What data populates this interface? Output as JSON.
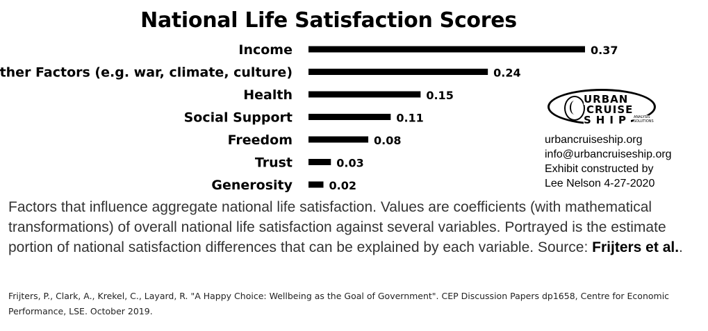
{
  "chart_data": {
    "type": "bar",
    "orientation": "horizontal",
    "title": "National Life Satisfaction Scores",
    "categories": [
      "Income",
      "Other Factors (e.g. war, climate, culture)",
      "Health",
      "Social Support",
      "Freedom",
      "Trust",
      "Generosity"
    ],
    "values": [
      0.37,
      0.24,
      0.15,
      0.11,
      0.08,
      0.03,
      0.02
    ],
    "value_labels": [
      "0.37",
      "0.24",
      "0.15",
      "0.11",
      "0.08",
      "0.03",
      "0.02"
    ],
    "xlim": [
      0,
      0.37
    ],
    "grid": false,
    "bar_color": "#000000"
  },
  "logo": {
    "line1": "URBAN",
    "line2": "CRUISE",
    "line3": "SHIP",
    "sub1": "ANALYSIS",
    "sub2": "SOLUTIONS",
    "registered": "®"
  },
  "contact": {
    "website": "urbancruiseship.org",
    "email": "info@urbancruiseship.org",
    "credit_line1": "Exhibit constructed by",
    "credit_line2": "Lee Nelson 4-27-2020"
  },
  "caption": {
    "text": "Factors that influence aggregate national life satisfaction. Values are coefficients (with mathematical transformations) of overall national life satisfaction against several variables. Portrayed is the estimate portion of national satisfaction differences that can be explained by each variable. Source: ",
    "source_bold": "Frijters et al.",
    "end": "."
  },
  "reference": "Frijters, P., Clark, A., Krekel, C., Layard, R. \"A Happy Choice: Wellbeing as the Goal of Government\". CEP Discussion Papers dp1658, Centre for Economic Performance, LSE. October 2019."
}
